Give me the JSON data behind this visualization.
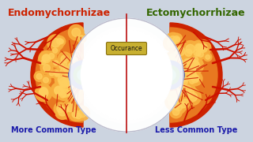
{
  "title_left": "Endomychorrhizae",
  "title_right": "Ectomychorrhizae",
  "label_center": "Occurance",
  "subtitle_left": "More Common Type",
  "subtitle_right": "Less Common Type",
  "bg_color": "#ccd4e0",
  "divider_color": "#bb1111",
  "title_left_color": "#cc2200",
  "title_right_color": "#336600",
  "subtitle_color": "#1a1aaa",
  "label_center_bg": "#c8b030",
  "orange_cell": "#e87820",
  "orange_light": "#f8b040",
  "red_hyphae": "#cc1100",
  "blue_inner": "#1133bb",
  "green_inner": "#228833"
}
